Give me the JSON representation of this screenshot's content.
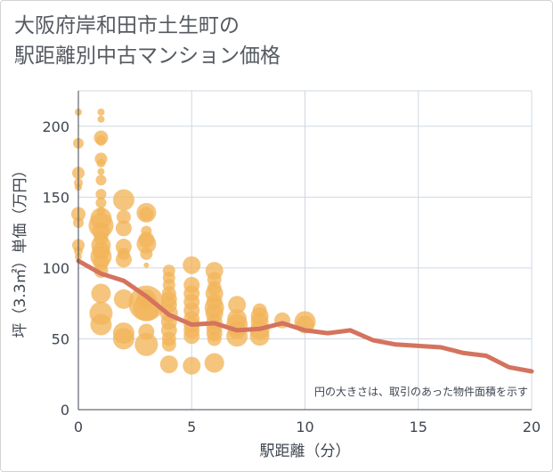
{
  "title_lines": [
    "大阪府岸和田市土生町の",
    "駅距離別中古マンション価格"
  ],
  "chart_data": {
    "type": "scatter",
    "title": "大阪府岸和田市土生町の駅距離別中古マンション価格",
    "xlabel": "駅距離（分）",
    "ylabel": "坪（3.3㎡）単価（万円）",
    "xlim": [
      0,
      20
    ],
    "ylim": [
      0,
      225
    ],
    "x_ticks": [
      0,
      5,
      10,
      15,
      20
    ],
    "y_ticks": [
      0,
      50,
      100,
      150,
      200
    ],
    "grid": true,
    "note": "円の大きさは、取引のあった物件面積を示す",
    "bubble_color": "#f2b55a",
    "line_color": "#d4735e",
    "trend_line": {
      "x": [
        0,
        1,
        2,
        3,
        4,
        5,
        6,
        7,
        8,
        9,
        10,
        11,
        12,
        13,
        14,
        15,
        16,
        17,
        18,
        19,
        20
      ],
      "y": [
        105,
        96,
        91,
        80,
        67,
        60,
        61,
        56,
        57,
        61,
        56,
        54,
        56,
        49,
        46,
        45,
        44,
        40,
        38,
        30,
        27
      ]
    },
    "bubbles": [
      {
        "x": 0,
        "y": 210,
        "s": 4
      },
      {
        "x": 0,
        "y": 188,
        "s": 6
      },
      {
        "x": 0,
        "y": 167,
        "s": 7
      },
      {
        "x": 0,
        "y": 160,
        "s": 5
      },
      {
        "x": 0,
        "y": 157,
        "s": 4
      },
      {
        "x": 0,
        "y": 138,
        "s": 8
      },
      {
        "x": 0,
        "y": 132,
        "s": 6
      },
      {
        "x": 0,
        "y": 116,
        "s": 7
      },
      {
        "x": 0,
        "y": 112,
        "s": 5
      },
      {
        "x": 0,
        "y": 108,
        "s": 4
      },
      {
        "x": 1,
        "y": 210,
        "s": 4
      },
      {
        "x": 1,
        "y": 205,
        "s": 4
      },
      {
        "x": 1,
        "y": 192,
        "s": 8
      },
      {
        "x": 1,
        "y": 190,
        "s": 6
      },
      {
        "x": 1,
        "y": 177,
        "s": 7
      },
      {
        "x": 1,
        "y": 174,
        "s": 5
      },
      {
        "x": 1,
        "y": 168,
        "s": 4
      },
      {
        "x": 1,
        "y": 162,
        "s": 6
      },
      {
        "x": 1,
        "y": 152,
        "s": 6
      },
      {
        "x": 1,
        "y": 146,
        "s": 6
      },
      {
        "x": 1,
        "y": 140,
        "s": 5
      },
      {
        "x": 1,
        "y": 135,
        "s": 12
      },
      {
        "x": 1,
        "y": 130,
        "s": 14
      },
      {
        "x": 1,
        "y": 126,
        "s": 10
      },
      {
        "x": 1,
        "y": 121,
        "s": 8
      },
      {
        "x": 1,
        "y": 116,
        "s": 11
      },
      {
        "x": 1,
        "y": 112,
        "s": 10
      },
      {
        "x": 1,
        "y": 108,
        "s": 12
      },
      {
        "x": 1,
        "y": 104,
        "s": 9
      },
      {
        "x": 1,
        "y": 98,
        "s": 8
      },
      {
        "x": 1,
        "y": 82,
        "s": 11
      },
      {
        "x": 1,
        "y": 68,
        "s": 13
      },
      {
        "x": 1,
        "y": 60,
        "s": 12
      },
      {
        "x": 2,
        "y": 148,
        "s": 12
      },
      {
        "x": 2,
        "y": 136,
        "s": 8
      },
      {
        "x": 2,
        "y": 128,
        "s": 9
      },
      {
        "x": 2,
        "y": 115,
        "s": 9
      },
      {
        "x": 2,
        "y": 110,
        "s": 7
      },
      {
        "x": 2,
        "y": 106,
        "s": 9
      },
      {
        "x": 2,
        "y": 78,
        "s": 11
      },
      {
        "x": 2,
        "y": 54,
        "s": 12
      },
      {
        "x": 2,
        "y": 50,
        "s": 12
      },
      {
        "x": 3,
        "y": 139,
        "s": 11
      },
      {
        "x": 3,
        "y": 138,
        "s": 8
      },
      {
        "x": 3,
        "y": 126,
        "s": 6
      },
      {
        "x": 3,
        "y": 120,
        "s": 9
      },
      {
        "x": 3,
        "y": 117,
        "s": 11
      },
      {
        "x": 3,
        "y": 110,
        "s": 7
      },
      {
        "x": 3,
        "y": 102,
        "s": 3
      },
      {
        "x": 3,
        "y": 78,
        "s": 11
      },
      {
        "x": 3,
        "y": 75,
        "s": 20
      },
      {
        "x": 3,
        "y": 72,
        "s": 15
      },
      {
        "x": 3,
        "y": 55,
        "s": 9
      },
      {
        "x": 3,
        "y": 46,
        "s": 13
      },
      {
        "x": 4,
        "y": 98,
        "s": 7
      },
      {
        "x": 4,
        "y": 93,
        "s": 7
      },
      {
        "x": 4,
        "y": 88,
        "s": 7
      },
      {
        "x": 4,
        "y": 82,
        "s": 8
      },
      {
        "x": 4,
        "y": 78,
        "s": 9
      },
      {
        "x": 4,
        "y": 74,
        "s": 9
      },
      {
        "x": 4,
        "y": 68,
        "s": 10
      },
      {
        "x": 4,
        "y": 62,
        "s": 9
      },
      {
        "x": 4,
        "y": 56,
        "s": 9
      },
      {
        "x": 4,
        "y": 50,
        "s": 8
      },
      {
        "x": 4,
        "y": 46,
        "s": 8
      },
      {
        "x": 4,
        "y": 32,
        "s": 10
      },
      {
        "x": 5,
        "y": 102,
        "s": 10
      },
      {
        "x": 5,
        "y": 88,
        "s": 9
      },
      {
        "x": 5,
        "y": 82,
        "s": 9
      },
      {
        "x": 5,
        "y": 76,
        "s": 9
      },
      {
        "x": 5,
        "y": 70,
        "s": 9
      },
      {
        "x": 5,
        "y": 64,
        "s": 9
      },
      {
        "x": 5,
        "y": 60,
        "s": 9
      },
      {
        "x": 5,
        "y": 56,
        "s": 9
      },
      {
        "x": 5,
        "y": 52,
        "s": 9
      },
      {
        "x": 5,
        "y": 31,
        "s": 10
      },
      {
        "x": 6,
        "y": 98,
        "s": 10
      },
      {
        "x": 6,
        "y": 92,
        "s": 8
      },
      {
        "x": 6,
        "y": 86,
        "s": 8
      },
      {
        "x": 6,
        "y": 82,
        "s": 10
      },
      {
        "x": 6,
        "y": 76,
        "s": 9
      },
      {
        "x": 6,
        "y": 72,
        "s": 11
      },
      {
        "x": 6,
        "y": 68,
        "s": 10
      },
      {
        "x": 6,
        "y": 62,
        "s": 9
      },
      {
        "x": 6,
        "y": 58,
        "s": 9
      },
      {
        "x": 6,
        "y": 54,
        "s": 9
      },
      {
        "x": 6,
        "y": 50,
        "s": 8
      },
      {
        "x": 6,
        "y": 33,
        "s": 11
      },
      {
        "x": 7,
        "y": 74,
        "s": 10
      },
      {
        "x": 7,
        "y": 64,
        "s": 11
      },
      {
        "x": 7,
        "y": 60,
        "s": 12
      },
      {
        "x": 7,
        "y": 56,
        "s": 10
      },
      {
        "x": 7,
        "y": 52,
        "s": 12
      },
      {
        "x": 8,
        "y": 70,
        "s": 8
      },
      {
        "x": 8,
        "y": 66,
        "s": 10
      },
      {
        "x": 8,
        "y": 62,
        "s": 10
      },
      {
        "x": 8,
        "y": 56,
        "s": 11
      },
      {
        "x": 8,
        "y": 52,
        "s": 11
      },
      {
        "x": 9,
        "y": 63,
        "s": 9
      },
      {
        "x": 10,
        "y": 62,
        "s": 12
      },
      {
        "x": 10,
        "y": 60,
        "s": 10
      }
    ]
  }
}
